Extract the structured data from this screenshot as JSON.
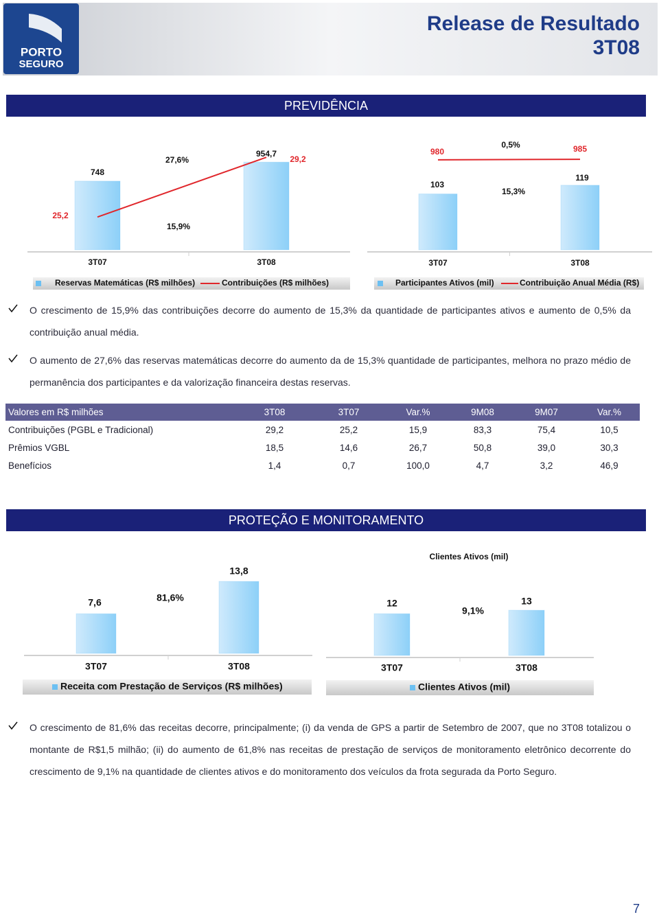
{
  "header": {
    "logo": [
      "PORTO",
      "SEGURO"
    ],
    "title": [
      "Release de Resultado",
      "3T08"
    ]
  },
  "previdencia": {
    "title": "PREVIDÊNCIA",
    "charts": [
      {
        "type": "bar_line",
        "categories": [
          "3T07",
          "3T08"
        ],
        "bars": {
          "name": "Reservas Matemáticas (R$ milhões)",
          "color": "#6cc0f2",
          "values": [
            748,
            954.7
          ],
          "value_labels": [
            "748",
            "954,7"
          ]
        },
        "line": {
          "name": "Contribuições (R$ milhões)",
          "color": "#e0262b",
          "values": [
            25.2,
            29.2
          ],
          "value_labels": [
            "25,2",
            "29,2"
          ]
        },
        "ylim": [
          0,
          1300
        ],
        "y2lim": [
          23,
          31
        ],
        "annotations": [
          "27,6%",
          "15,9%"
        ]
      },
      {
        "type": "bar_line",
        "categories": [
          "3T07",
          "3T08"
        ],
        "bars": {
          "name": "Participantes Ativos (mil)",
          "color": "#6cc0f2",
          "values": [
            103,
            119
          ]
        },
        "line": {
          "name": "Contribuição Anual Média (R$)",
          "color": "#e0262b",
          "values": [
            980,
            985
          ]
        },
        "ylim": [
          0,
          220
        ],
        "y2lim": [
          0,
          1300
        ],
        "annotations": [
          "0,5%",
          "15,3%"
        ]
      }
    ],
    "bullets": [
      "O crescimento de 15,9% das contribuições decorre do aumento de 15,3% da quantidade de participantes ativos e aumento de 0,5% da contribuição anual média.",
      "O aumento de 27,6% das reservas matemáticas decorre do aumento da  de 15,3% quantidade de participantes, melhora no prazo médio de permanência dos participantes e da valorização financeira destas reservas."
    ],
    "table": {
      "header": [
        "Valores em R$ milhões",
        "3T08",
        "3T07",
        "Var.%",
        "9M08",
        "9M07",
        "Var.%"
      ],
      "rows": [
        [
          "Contribuições (PGBL e Tradicional)",
          "29,2",
          "25,2",
          "15,9",
          "83,3",
          "75,4",
          "10,5"
        ],
        [
          "Prêmios VGBL",
          "18,5",
          "14,6",
          "26,7",
          "50,8",
          "39,0",
          "30,3"
        ],
        [
          "Benefícios",
          "1,4",
          "0,7",
          "100,0",
          "4,7",
          "3,2",
          "46,9"
        ]
      ]
    }
  },
  "protecao": {
    "title": "PROTEÇÃO E MONITORAMENTO",
    "charts": [
      {
        "type": "bar",
        "categories": [
          "3T07",
          "3T08"
        ],
        "bars": {
          "name": "Receita com Prestação de Serviços (R$ milhões)",
          "color": "#6cc0f2",
          "values": [
            7.6,
            13.8
          ],
          "value_labels": [
            "7,6",
            "13,8"
          ]
        },
        "ylim": [
          0,
          20
        ],
        "annotations": [
          "81,6%"
        ]
      },
      {
        "type": "bar",
        "title": "Clientes Ativos (mil)",
        "categories": [
          "3T07",
          "3T08"
        ],
        "bars": {
          "name": "Clientes Ativos (mil)",
          "color": "#6cc0f2",
          "values": [
            12,
            13
          ]
        },
        "ylim": [
          0,
          30
        ],
        "annotations": [
          "9,1%"
        ]
      }
    ],
    "bullets": [
      "O crescimento de 81,6% das receitas decorre, principalmente; (i) da venda de GPS a partir de Setembro de 2007, que no 3T08 totalizou o montante de R$1,5 milhão; (ii) do aumento de 61,8% nas receitas de prestação de serviços de monitoramento eletrônico decorrente do crescimento de 9,1% na quantidade de clientes ativos e do monitoramento dos veículos da frota segurada da Porto Seguro."
    ]
  },
  "page_number": "7"
}
